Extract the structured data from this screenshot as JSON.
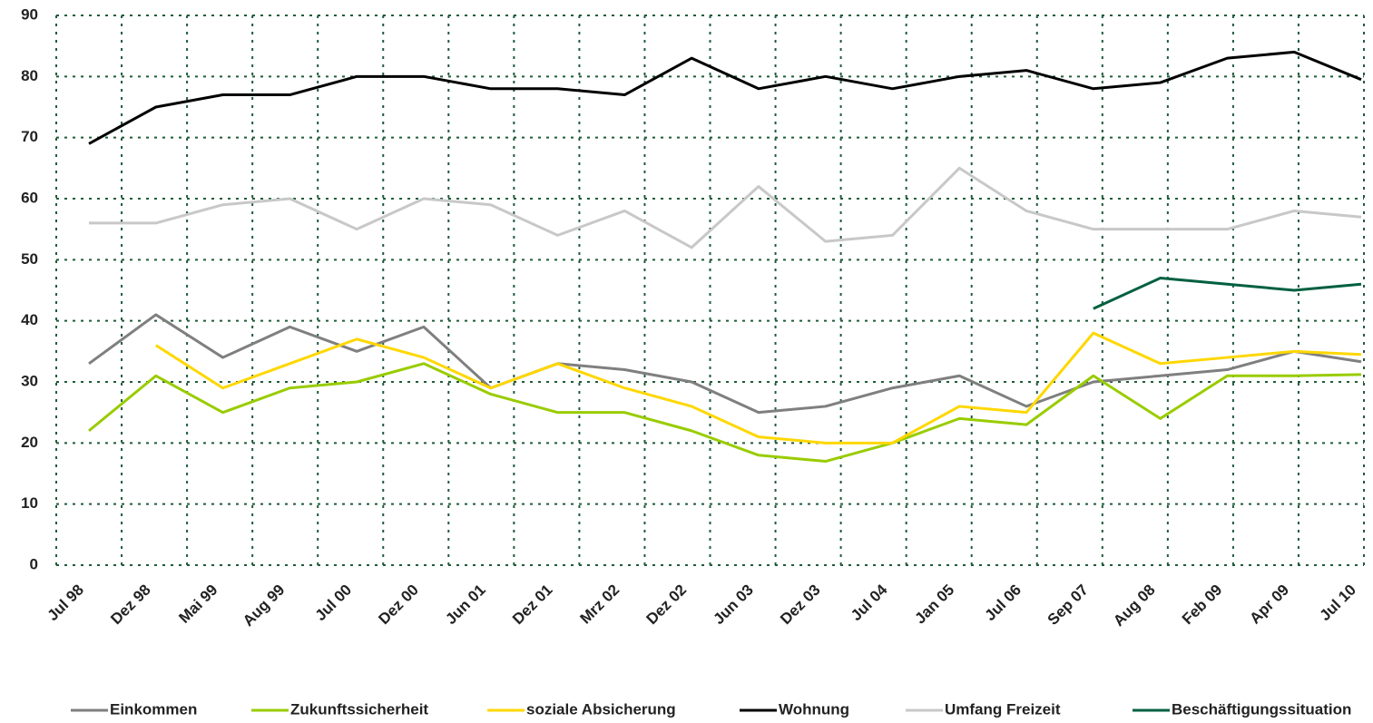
{
  "chart_data": {
    "type": "line",
    "categories": [
      "Jul 98",
      "Dez 98",
      "Mai 99",
      "Aug 99",
      "Jul 00",
      "Dez 00",
      "Jun 01",
      "Dez 01",
      "Mrz 02",
      "Dez 02",
      "Jun 03",
      "Dez 03",
      "Jul 04",
      "Jan 05",
      "Jul 06",
      "Sep 07",
      "Aug 08",
      "Feb 09",
      "Apr 09",
      "Jul 10"
    ],
    "series": [
      {
        "name": "Einkommen",
        "color": "#7f7f7f",
        "values": [
          33,
          41,
          34,
          39,
          35,
          39,
          29,
          33,
          32,
          30,
          25,
          26,
          29,
          31,
          26,
          30,
          31,
          32,
          35,
          33.3
        ]
      },
      {
        "name": "Zukunftssicherheit",
        "color": "#99cc00",
        "values": [
          22,
          31,
          25,
          29,
          30,
          33,
          28,
          25,
          25,
          22,
          18,
          17,
          20,
          24,
          23,
          31,
          24,
          31,
          31,
          31.2
        ]
      },
      {
        "name": "soziale Absicherung",
        "color": "#ffd700",
        "values": [
          null,
          36,
          29,
          33,
          37,
          34,
          29,
          33,
          29,
          26,
          21,
          20,
          20,
          26,
          25,
          38,
          33,
          34,
          35,
          34.5
        ]
      },
      {
        "name": "Wohnung",
        "color": "#000000",
        "values": [
          69,
          75,
          77,
          77,
          80,
          80,
          78,
          78,
          77,
          83,
          78,
          80,
          78,
          80,
          81,
          78,
          79,
          83,
          84,
          79.5
        ]
      },
      {
        "name": "Umfang Freizeit",
        "color": "#c8c8c8",
        "values": [
          56,
          56,
          59,
          60,
          55,
          60,
          59,
          54,
          58,
          52,
          62,
          53,
          54,
          65,
          58,
          55,
          55,
          55,
          58,
          57
        ]
      },
      {
        "name": "Beschäftigungssituation",
        "color": "#006040",
        "values": [
          null,
          null,
          null,
          null,
          null,
          null,
          null,
          null,
          null,
          null,
          null,
          null,
          null,
          null,
          null,
          42,
          47,
          46,
          45,
          46
        ]
      }
    ],
    "ylim": [
      0,
      90
    ],
    "yticks": [
      0,
      10,
      20,
      30,
      40,
      50,
      60,
      70,
      80,
      90
    ],
    "grid": true,
    "legend": "bottom"
  }
}
